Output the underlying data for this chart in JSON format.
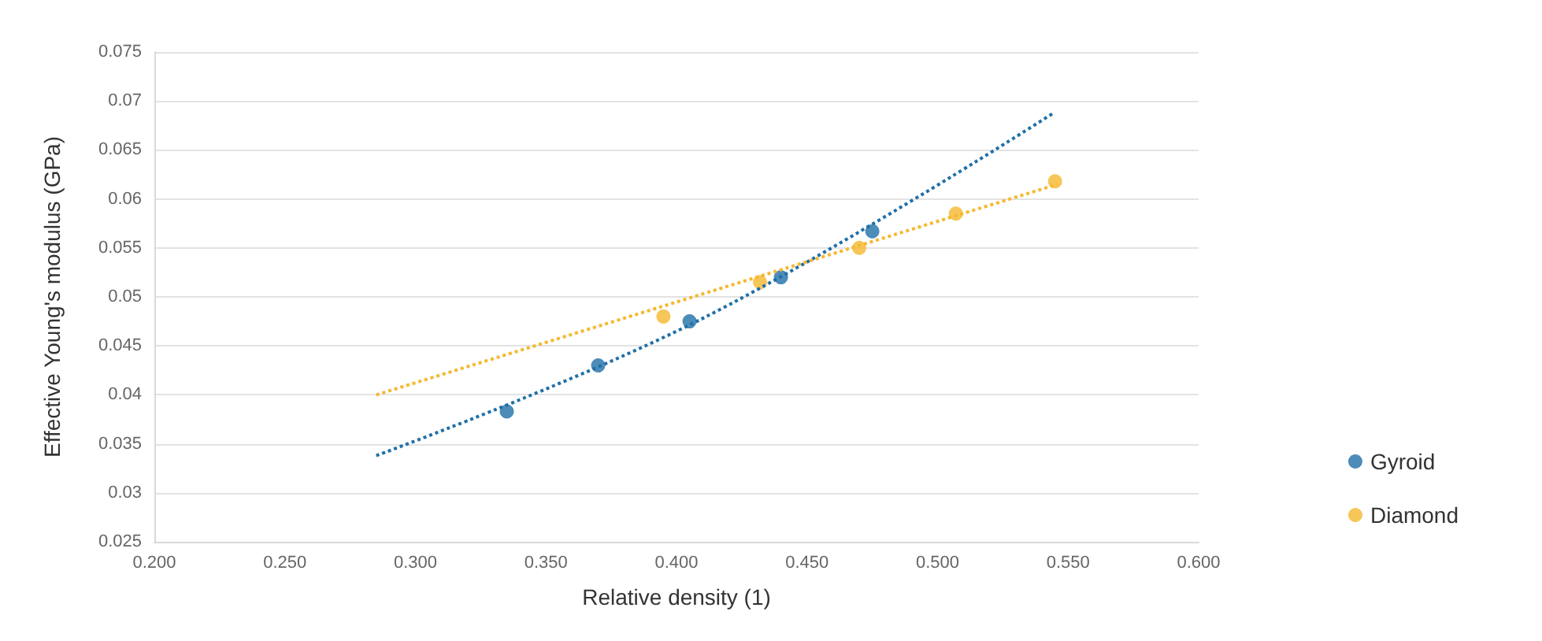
{
  "chart_data": {
    "type": "scatter",
    "xlabel": "Relative density (1)",
    "ylabel": "Effective Young's modulus (GPa)",
    "xlim": [
      0.2,
      0.6
    ],
    "xticks": [
      {
        "value": 0.2,
        "label": "0.200"
      },
      {
        "value": 0.25,
        "label": "0.250"
      },
      {
        "value": 0.3,
        "label": "0.300"
      },
      {
        "value": 0.35,
        "label": "0.350"
      },
      {
        "value": 0.4,
        "label": "0.400"
      },
      {
        "value": 0.45,
        "label": "0.450"
      },
      {
        "value": 0.5,
        "label": "0.500"
      },
      {
        "value": 0.55,
        "label": "0.550"
      },
      {
        "value": 0.6,
        "label": "0.600"
      }
    ],
    "ylim": [
      0.025,
      0.075
    ],
    "yticks": [
      0.025,
      0.03,
      0.035,
      0.04,
      0.045,
      0.05,
      0.055,
      0.06,
      0.065,
      0.07,
      0.075
    ],
    "grid": "y",
    "legend": "bottom right",
    "series": [
      {
        "name": "Gyroid",
        "marker": "circle",
        "color": "#1f6fa8",
        "x": [
          0.335,
          0.37,
          0.405,
          0.44,
          0.475
        ],
        "values": [
          0.0383,
          0.043,
          0.0475,
          0.052,
          0.0567
        ]
      },
      {
        "name": "Diamond",
        "marker": "circle",
        "color": "#f5b82e",
        "x": [
          0.395,
          0.432,
          0.47,
          0.507,
          0.545
        ],
        "values": [
          0.048,
          0.0515,
          0.055,
          0.0585,
          0.0618
        ]
      },
      {
        "type": "line",
        "marker": "none",
        "line_style": "dotted",
        "color": "#1f6fa8",
        "x": [
          0.285,
          0.41,
          0.544
        ],
        "values": [
          0.0338,
          0.0478,
          0.0687
        ]
      },
      {
        "type": "line",
        "marker": "none",
        "line_style": "dotted",
        "color": "#f5b82e",
        "x": [
          0.285,
          0.546
        ],
        "values": [
          0.04,
          0.0615
        ]
      }
    ]
  }
}
